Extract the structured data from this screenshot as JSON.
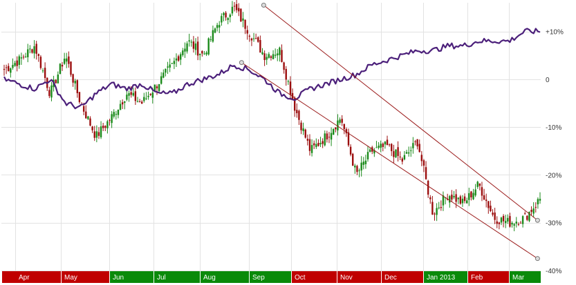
{
  "chart_data": {
    "type": "candlestick",
    "title": "",
    "xlabel": "",
    "ylabel": "",
    "ylim": [
      -40,
      16
    ],
    "y_ticks": [
      {
        "value": 10,
        "label": "+10%"
      },
      {
        "value": 0,
        "label": "0"
      },
      {
        "value": -10,
        "label": "-10%"
      },
      {
        "value": -20,
        "label": "-20%"
      },
      {
        "value": -30,
        "label": "-30%"
      },
      {
        "value": -40,
        "label": "-40%"
      }
    ],
    "months": [
      {
        "label": "Apr",
        "color": "#c00000"
      },
      {
        "label": "May",
        "color": "#c00000"
      },
      {
        "label": "Jun",
        "color": "#0a8a0a"
      },
      {
        "label": "Jul",
        "color": "#0a8a0a"
      },
      {
        "label": "Aug",
        "color": "#0a8a0a"
      },
      {
        "label": "Sep",
        "color": "#0a8a0a"
      },
      {
        "label": "Oct",
        "color": "#c00000"
      },
      {
        "label": "Nov",
        "color": "#c00000"
      },
      {
        "label": "Dec",
        "color": "#c00000"
      },
      {
        "label": "Jan 2013",
        "color": "#0a8a0a"
      },
      {
        "label": "Feb",
        "color": "#c00000"
      },
      {
        "label": "Mar",
        "color": "#0a8a0a"
      }
    ],
    "colors": {
      "up": "#1a8a1a",
      "down": "#9b0d0d",
      "benchmark": "#4b1f7a",
      "trend": "#9b1b1b",
      "grid": "#e2e2e2"
    },
    "price_anchors": [
      2,
      4,
      7,
      -3,
      5,
      -5,
      -12,
      -8,
      -3,
      -5,
      -1,
      3,
      8,
      5,
      12,
      15,
      10,
      5,
      6,
      -6,
      -15,
      -12,
      -8,
      -20,
      -15,
      -14,
      -17,
      -13,
      -28,
      -24,
      -26,
      -22,
      -29,
      -30,
      -29,
      -25
    ],
    "benchmark_anchors": [
      0,
      -1,
      -2,
      0,
      -5,
      -6,
      -3,
      -1,
      -2,
      -1,
      -3,
      -3,
      -1,
      0,
      1,
      3,
      2,
      0,
      -3,
      -4,
      -2,
      -1,
      0,
      1,
      3,
      4,
      5,
      6,
      6,
      7,
      7,
      8,
      8,
      8,
      10,
      10
    ],
    "trendlines": [
      {
        "name": "upper",
        "from": {
          "month_index": 5.35,
          "value": 15.5
        },
        "to": {
          "month_index": 11.9,
          "value": -29.5
        }
      },
      {
        "name": "lower",
        "from": {
          "month_index": 4.85,
          "value": 3.5
        },
        "to": {
          "month_index": 11.9,
          "value": -37.5
        }
      }
    ]
  }
}
